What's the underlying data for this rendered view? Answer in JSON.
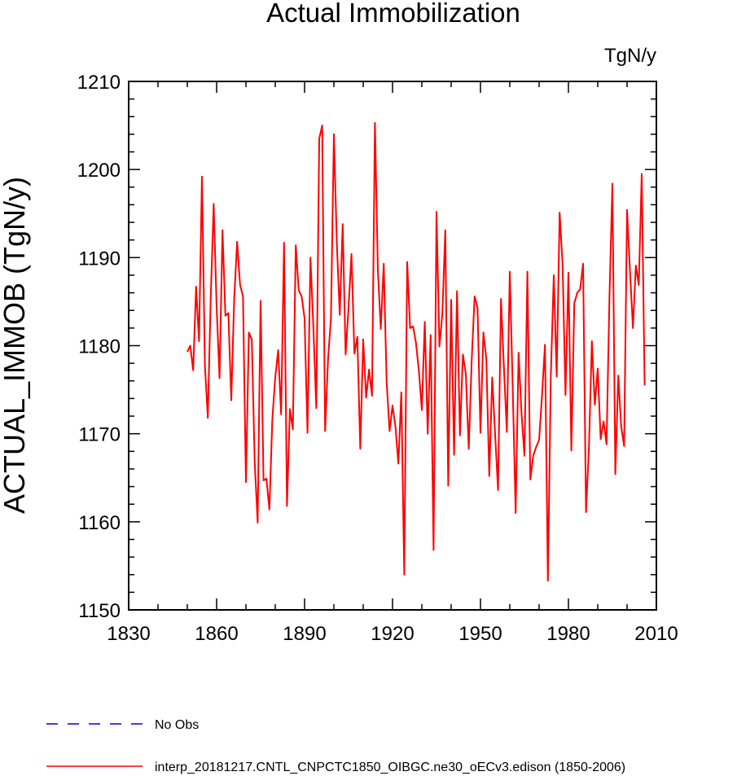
{
  "chart_data": {
    "type": "line",
    "title": "Actual Immobilization",
    "units": "TgN/y",
    "xlabel": "",
    "ylabel": "ACTUAL_IMMOB  (TgN/y)",
    "xlim": [
      1830,
      2010
    ],
    "ylim": [
      1150,
      1210
    ],
    "xticks": [
      1830,
      1860,
      1890,
      1920,
      1950,
      1980,
      2010
    ],
    "yticks": [
      1150,
      1160,
      1170,
      1180,
      1190,
      1200,
      1210
    ],
    "series": [
      {
        "name": "interp_20181217.CNTL_CNPCTC1850_OIBGC.ne30_oECv3.edison (1850-2006)",
        "color": "#ff0000",
        "style": "solid",
        "x": [
          1850,
          1851,
          1852,
          1853,
          1854,
          1855,
          1856,
          1857,
          1858,
          1859,
          1860,
          1861,
          1862,
          1863,
          1864,
          1865,
          1866,
          1867,
          1868,
          1869,
          1870,
          1871,
          1872,
          1873,
          1874,
          1875,
          1876,
          1877,
          1878,
          1879,
          1880,
          1881,
          1882,
          1883,
          1884,
          1885,
          1886,
          1887,
          1888,
          1889,
          1890,
          1891,
          1892,
          1893,
          1894,
          1895,
          1896,
          1897,
          1898,
          1899,
          1900,
          1901,
          1902,
          1903,
          1904,
          1905,
          1906,
          1907,
          1908,
          1909,
          1910,
          1911,
          1912,
          1913,
          1914,
          1915,
          1916,
          1917,
          1918,
          1919,
          1920,
          1921,
          1922,
          1923,
          1924,
          1925,
          1926,
          1927,
          1928,
          1929,
          1930,
          1931,
          1932,
          1933,
          1934,
          1935,
          1936,
          1937,
          1938,
          1939,
          1940,
          1941,
          1942,
          1943,
          1944,
          1945,
          1946,
          1947,
          1948,
          1949,
          1950,
          1951,
          1952,
          1953,
          1954,
          1955,
          1956,
          1957,
          1958,
          1959,
          1960,
          1961,
          1962,
          1963,
          1964,
          1965,
          1966,
          1967,
          1968,
          1969,
          1970,
          1971,
          1972,
          1973,
          1974,
          1975,
          1976,
          1977,
          1978,
          1979,
          1980,
          1981,
          1982,
          1983,
          1984,
          1985,
          1986,
          1987,
          1988,
          1989,
          1990,
          1991,
          1992,
          1993,
          1994,
          1995,
          1996,
          1997,
          1998,
          1999,
          2000,
          2001,
          2002,
          2003,
          2004,
          2005,
          2006
        ],
        "values": [
          1179.3,
          1180.0,
          1177.2,
          1186.7,
          1180.5,
          1199.2,
          1177.8,
          1171.8,
          1185.5,
          1196.1,
          1184.4,
          1176.3,
          1193.1,
          1183.4,
          1183.7,
          1173.8,
          1185.4,
          1191.8,
          1186.9,
          1185.6,
          1164.5,
          1181.5,
          1180.7,
          1166.7,
          1159.9,
          1185.1,
          1164.7,
          1164.9,
          1161.4,
          1171.6,
          1176.4,
          1179.5,
          1172.2,
          1191.7,
          1161.8,
          1172.8,
          1170.5,
          1191.4,
          1186.3,
          1185.6,
          1183.1,
          1170.1,
          1190.0,
          1182.1,
          1172.9,
          1203.5,
          1205.0,
          1170.3,
          1178.4,
          1183.1,
          1204.0,
          1191.7,
          1183.5,
          1193.8,
          1179.0,
          1184.3,
          1190.4,
          1179.1,
          1181.0,
          1168.3,
          1180.7,
          1174.1,
          1177.3,
          1174.3,
          1205.3,
          1188.6,
          1181.9,
          1189.3,
          1175.8,
          1170.3,
          1173.2,
          1170.8,
          1166.6,
          1174.7,
          1154.0,
          1189.5,
          1182.0,
          1182.2,
          1180.3,
          1177.1,
          1172.7,
          1182.7,
          1170.0,
          1181.2,
          1156.8,
          1195.2,
          1179.9,
          1183.6,
          1193.1,
          1164.1,
          1185.2,
          1167.6,
          1186.2,
          1169.8,
          1179.0,
          1176.8,
          1168.3,
          1178.3,
          1185.6,
          1184.3,
          1170.1,
          1181.5,
          1178.5,
          1165.2,
          1176.4,
          1169.9,
          1163.6,
          1185.3,
          1177.5,
          1170.2,
          1188.4,
          1175.2,
          1161.0,
          1179.2,
          1172.3,
          1167.5,
          1188.4,
          1164.8,
          1167.5,
          1168.5,
          1169.3,
          1174.4,
          1180.1,
          1153.3,
          1176.6,
          1188.0,
          1176.5,
          1195.1,
          1189.3,
          1174.4,
          1188.3,
          1168.1,
          1184.8,
          1186.0,
          1186.4,
          1189.3,
          1161.1,
          1168.5,
          1180.5,
          1173.3,
          1177.4,
          1169.4,
          1171.4,
          1168.8,
          1185.6,
          1198.4,
          1165.4,
          1176.6,
          1170.8,
          1168.6,
          1195.4,
          1188.5,
          1182.0,
          1189.1,
          1186.9,
          1199.5,
          1175.5
        ]
      }
    ],
    "legend": [
      {
        "label": "No Obs",
        "color": "#0000cc",
        "style": "dashed"
      },
      {
        "label": "interp_20181217.CNTL_CNPCTC1850_OIBGC.ne30_oECv3.edison (1850-2006)",
        "color": "#ff0000",
        "style": "solid"
      }
    ],
    "legend_position": "bottom"
  }
}
